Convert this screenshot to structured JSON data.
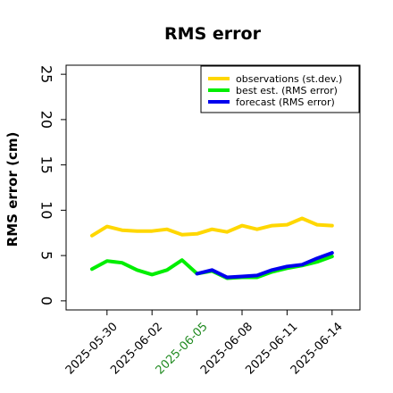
{
  "chart_data": {
    "type": "line",
    "title": "RMS error",
    "xlabel": "",
    "ylabel": "RMS error (cm)",
    "ylim": [
      -1,
      26
    ],
    "yticks": [
      "0",
      "5",
      "10",
      "15",
      "20",
      "25"
    ],
    "xtick_labels": [
      "2025-05-30",
      "2025-06-02",
      "2025-06-05",
      "2025-06-08",
      "2025-06-11",
      "2025-06-14"
    ],
    "xtick_colors": [
      "#000000",
      "#000000",
      "#228b22",
      "#000000",
      "#000000",
      "#000000"
    ],
    "grid": false,
    "legend_position": "top-right",
    "series": [
      {
        "name": "observations (st.dev.)",
        "color": "#ffd700",
        "x": [
          "2025-05-29",
          "2025-05-30",
          "2025-05-31",
          "2025-06-01",
          "2025-06-02",
          "2025-06-03",
          "2025-06-04",
          "2025-06-05",
          "2025-06-06",
          "2025-06-07",
          "2025-06-08",
          "2025-06-09",
          "2025-06-10",
          "2025-06-11",
          "2025-06-12",
          "2025-06-13",
          "2025-06-14"
        ],
        "values": [
          7.2,
          8.2,
          7.8,
          7.7,
          7.7,
          7.9,
          7.3,
          7.4,
          7.9,
          7.6,
          8.3,
          7.9,
          8.3,
          8.4,
          9.1,
          8.4,
          8.3
        ]
      },
      {
        "name": "best est. (RMS error)",
        "color": "#00ee00",
        "x": [
          "2025-05-29",
          "2025-05-30",
          "2025-05-31",
          "2025-06-01",
          "2025-06-02",
          "2025-06-03",
          "2025-06-04",
          "2025-06-05",
          "2025-06-06",
          "2025-06-07",
          "2025-06-08",
          "2025-06-09",
          "2025-06-10",
          "2025-06-11",
          "2025-06-12",
          "2025-06-13",
          "2025-06-14"
        ],
        "values": [
          3.5,
          4.4,
          4.2,
          3.4,
          2.9,
          3.4,
          4.5,
          3.0,
          3.3,
          2.5,
          2.6,
          2.6,
          3.2,
          3.6,
          3.9,
          4.3,
          4.9
        ]
      },
      {
        "name": "forecast (RMS error)",
        "color": "#0000ee",
        "x": [
          "2025-06-05",
          "2025-06-06",
          "2025-06-07",
          "2025-06-08",
          "2025-06-09",
          "2025-06-10",
          "2025-06-11",
          "2025-06-12",
          "2025-06-13",
          "2025-06-14"
        ],
        "values": [
          3.0,
          3.4,
          2.6,
          2.7,
          2.8,
          3.4,
          3.8,
          4.0,
          4.7,
          5.3
        ]
      }
    ]
  }
}
